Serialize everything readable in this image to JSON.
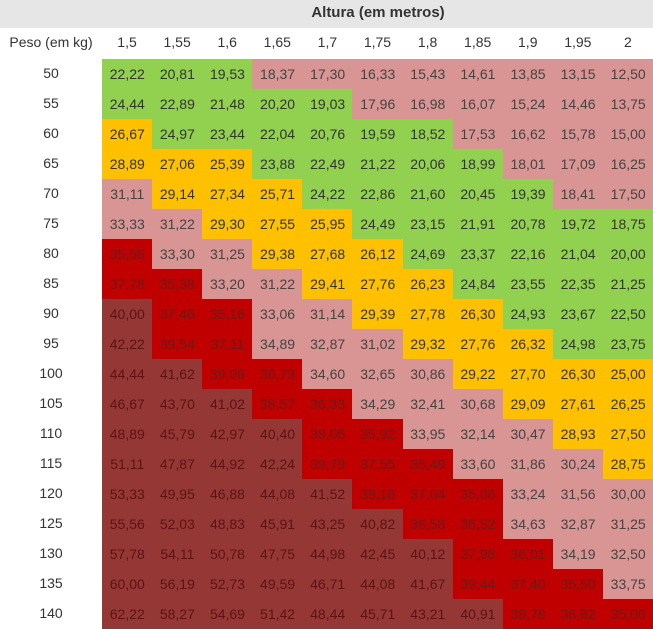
{
  "chart_data": {
    "type": "heatmap",
    "title": "Altura (em metros)",
    "row_header": "Peso (em kg)",
    "columns": [
      "1,5",
      "1,55",
      "1,6",
      "1,65",
      "1,7",
      "1,75",
      "1,8",
      "1,85",
      "1,9",
      "1,95",
      "2"
    ],
    "rows": [
      "50",
      "55",
      "60",
      "65",
      "70",
      "75",
      "80",
      "85",
      "90",
      "95",
      "100",
      "105",
      "110",
      "115",
      "120",
      "125",
      "130",
      "135",
      "140"
    ],
    "values": [
      [
        "22,22",
        "20,81",
        "19,53",
        "18,37",
        "17,30",
        "16,33",
        "15,43",
        "14,61",
        "13,85",
        "13,15",
        "12,50"
      ],
      [
        "24,44",
        "22,89",
        "21,48",
        "20,20",
        "19,03",
        "17,96",
        "16,98",
        "16,07",
        "15,24",
        "14,46",
        "13,75"
      ],
      [
        "26,67",
        "24,97",
        "23,44",
        "22,04",
        "20,76",
        "19,59",
        "18,52",
        "17,53",
        "16,62",
        "15,78",
        "15,00"
      ],
      [
        "28,89",
        "27,06",
        "25,39",
        "23,88",
        "22,49",
        "21,22",
        "20,06",
        "18,99",
        "18,01",
        "17,09",
        "16,25"
      ],
      [
        "31,11",
        "29,14",
        "27,34",
        "25,71",
        "24,22",
        "22,86",
        "21,60",
        "20,45",
        "19,39",
        "18,41",
        "17,50"
      ],
      [
        "33,33",
        "31,22",
        "29,30",
        "27,55",
        "25,95",
        "24,49",
        "23,15",
        "21,91",
        "20,78",
        "19,72",
        "18,75"
      ],
      [
        "35,56",
        "33,30",
        "31,25",
        "29,38",
        "27,68",
        "26,12",
        "24,69",
        "23,37",
        "22,16",
        "21,04",
        "20,00"
      ],
      [
        "37,78",
        "35,38",
        "33,20",
        "31,22",
        "29,41",
        "27,76",
        "26,23",
        "24,84",
        "23,55",
        "22,35",
        "21,25"
      ],
      [
        "40,00",
        "37,46",
        "35,16",
        "33,06",
        "31,14",
        "29,39",
        "27,78",
        "26,30",
        "24,93",
        "23,67",
        "22,50"
      ],
      [
        "42,22",
        "39,54",
        "37,11",
        "34,89",
        "32,87",
        "31,02",
        "29,32",
        "27,76",
        "26,32",
        "24,98",
        "23,75"
      ],
      [
        "44,44",
        "41,62",
        "39,06",
        "36,73",
        "34,60",
        "32,65",
        "30,86",
        "29,22",
        "27,70",
        "26,30",
        "25,00"
      ],
      [
        "46,67",
        "43,70",
        "41,02",
        "38,57",
        "36,33",
        "34,29",
        "32,41",
        "30,68",
        "29,09",
        "27,61",
        "26,25"
      ],
      [
        "48,89",
        "45,79",
        "42,97",
        "40,40",
        "38,06",
        "35,92",
        "33,95",
        "32,14",
        "30,47",
        "28,93",
        "27,50"
      ],
      [
        "51,11",
        "47,87",
        "44,92",
        "42,24",
        "39,79",
        "37,55",
        "35,49",
        "33,60",
        "31,86",
        "30,24",
        "28,75"
      ],
      [
        "53,33",
        "49,95",
        "46,88",
        "44,08",
        "41,52",
        "39,18",
        "37,04",
        "35,06",
        "33,24",
        "31,56",
        "30,00"
      ],
      [
        "55,56",
        "52,03",
        "48,83",
        "45,91",
        "43,25",
        "40,82",
        "38,58",
        "36,52",
        "34,63",
        "32,87",
        "31,25"
      ],
      [
        "57,78",
        "54,11",
        "50,78",
        "47,75",
        "44,98",
        "42,45",
        "40,12",
        "37,98",
        "36,01",
        "34,19",
        "32,50"
      ],
      [
        "60,00",
        "56,19",
        "52,73",
        "49,59",
        "46,71",
        "44,08",
        "41,67",
        "39,44",
        "37,40",
        "35,50",
        "33,75"
      ],
      [
        "62,22",
        "58,27",
        "54,69",
        "51,42",
        "48,44",
        "45,71",
        "43,21",
        "40,91",
        "38,78",
        "36,82",
        "35,00"
      ]
    ],
    "color_bands": [
      {
        "max": 18.5,
        "color": "#d99594",
        "text": "#444444"
      },
      {
        "max": 25,
        "color": "#92d050",
        "text": "#333333"
      },
      {
        "max": 30,
        "color": "#ffc000",
        "text": "#333333"
      },
      {
        "max": 35,
        "color": "#d99594",
        "text": "#444444"
      },
      {
        "max": 40,
        "color": "#c00000",
        "text": "#6b1a1a"
      },
      {
        "max": 999,
        "color": "#953735",
        "text": "#5a1414"
      }
    ]
  }
}
